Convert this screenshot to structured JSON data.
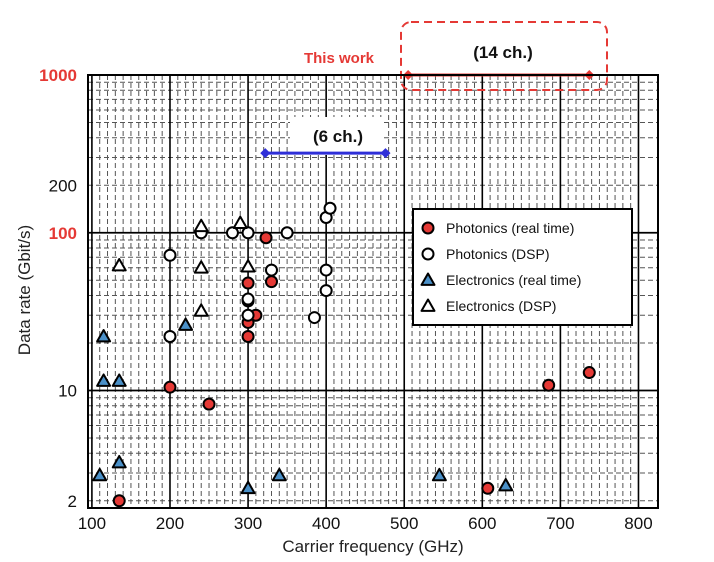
{
  "chart_data": {
    "type": "scatter",
    "title": "",
    "xlabel": "Carrier frequency (GHz)",
    "ylabel": "Data rate (Gbit/s)",
    "xlim": [
      95,
      825
    ],
    "ylog": true,
    "ylim": [
      1.8,
      1000
    ],
    "grid": "dense dashed minor grid with solid major grid lines",
    "x_ticks": [
      100,
      200,
      300,
      400,
      500,
      600,
      700,
      800
    ],
    "y_ticks": [
      {
        "value": 2,
        "label": "2",
        "highlight": false
      },
      {
        "value": 10,
        "label": "10",
        "highlight": false
      },
      {
        "value": 100,
        "label": "100",
        "highlight": true
      },
      {
        "value": 200,
        "label": "200",
        "highlight": false
      },
      {
        "value": 1000,
        "label": "1000",
        "highlight": true
      }
    ],
    "legend": {
      "position": "middle-right",
      "entries": [
        {
          "label": "Photonics (real time)",
          "marker": "circle",
          "fill": "#e53935"
        },
        {
          "label": "Photonics (DSP)",
          "marker": "circle",
          "fill": "#ffffff"
        },
        {
          "label": "Electronics (real time)",
          "marker": "triangle",
          "fill": "#4a90c8"
        },
        {
          "label": "Electronics (DSP)",
          "marker": "triangle",
          "fill": "#ffffff"
        }
      ]
    },
    "series": [
      {
        "name": "Photonics (real time)",
        "marker": "circle",
        "fill": "#e53935",
        "points": [
          [
            135,
            2
          ],
          [
            200,
            10.5
          ],
          [
            250,
            8.2
          ],
          [
            300,
            22
          ],
          [
            300,
            27
          ],
          [
            300,
            37
          ],
          [
            300,
            48
          ],
          [
            310,
            30
          ],
          [
            323,
            93
          ],
          [
            330,
            49
          ],
          [
            607,
            2.4
          ],
          [
            685,
            10.8
          ],
          [
            737,
            13
          ]
        ]
      },
      {
        "name": "Photonics (DSP)",
        "marker": "circle",
        "fill": "#ffffff",
        "points": [
          [
            200,
            22
          ],
          [
            200,
            72
          ],
          [
            240,
            100
          ],
          [
            280,
            100
          ],
          [
            300,
            100
          ],
          [
            300,
            38
          ],
          [
            300,
            30
          ],
          [
            330,
            58
          ],
          [
            350,
            100
          ],
          [
            385,
            29
          ],
          [
            400,
            43
          ],
          [
            400,
            58
          ],
          [
            400,
            125
          ],
          [
            405,
            143
          ]
        ]
      },
      {
        "name": "Electronics (real time)",
        "marker": "triangle",
        "fill": "#4a90c8",
        "points": [
          [
            110,
            2.9
          ],
          [
            115,
            11.5
          ],
          [
            115,
            22
          ],
          [
            135,
            11.5
          ],
          [
            135,
            3.5
          ],
          [
            220,
            26
          ],
          [
            300,
            2.4
          ],
          [
            340,
            2.9
          ],
          [
            545,
            2.9
          ],
          [
            630,
            2.5
          ]
        ]
      },
      {
        "name": "Electronics (DSP)",
        "marker": "triangle",
        "fill": "#ffffff",
        "points": [
          [
            135,
            62
          ],
          [
            240,
            32
          ],
          [
            240,
            60
          ],
          [
            240,
            110
          ],
          [
            290,
            115
          ],
          [
            300,
            61
          ]
        ]
      }
    ],
    "annotations": [
      {
        "label": "(6 ch.)",
        "x_from": 322,
        "x_to": 476,
        "y": 320,
        "color": "#2f2fd8"
      },
      {
        "label": "(14 ch.)",
        "x_from": 505,
        "x_to": 737,
        "y": 1000,
        "color": "#e53935"
      },
      {
        "label": "This work",
        "color": "#e53935"
      }
    ]
  }
}
